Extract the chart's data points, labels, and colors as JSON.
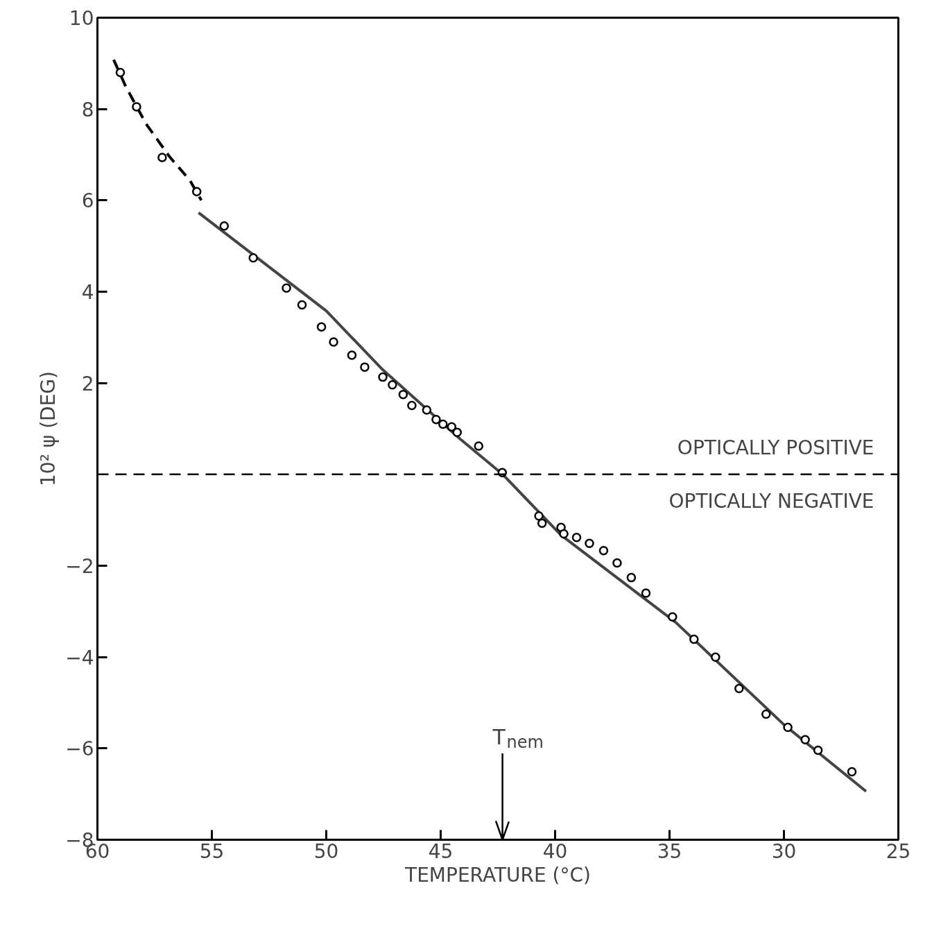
{
  "chart_data": {
    "type": "scatter",
    "xlabel": "TEMPERATURE (°C)",
    "ylabel": "10² ψ (DEG)",
    "xlim": [
      60,
      25
    ],
    "xticks": [
      60,
      55,
      50,
      45,
      40,
      35,
      30,
      25
    ],
    "ylim": [
      -8,
      10
    ],
    "yticks": [
      -8,
      -6,
      -4,
      -2,
      2,
      4,
      6,
      8,
      10
    ],
    "grid": false,
    "series": [
      {
        "marker": "circle",
        "color": "#000000",
        "x": [
          59.0,
          58.29,
          57.17,
          55.66,
          54.46,
          53.19,
          51.74,
          51.06,
          50.21,
          49.68,
          48.88,
          48.32,
          47.53,
          47.11,
          46.64,
          46.26,
          45.61,
          45.2,
          44.9,
          44.52,
          44.28,
          43.34,
          42.31,
          40.71,
          40.57,
          39.74,
          39.62,
          39.06,
          38.5,
          37.88,
          37.29,
          36.67,
          36.03,
          34.87,
          33.93,
          32.99,
          31.96,
          30.78,
          29.83,
          29.07,
          28.51,
          27.03
        ],
        "values": [
          8.8,
          8.05,
          6.94,
          6.19,
          5.44,
          4.74,
          4.08,
          3.71,
          3.23,
          2.9,
          2.61,
          2.35,
          2.13,
          1.96,
          1.75,
          1.51,
          1.41,
          1.2,
          1.1,
          1.04,
          0.92,
          0.62,
          0.04,
          -0.91,
          -1.07,
          -1.16,
          -1.3,
          -1.38,
          -1.51,
          -1.67,
          -1.94,
          -2.26,
          -2.6,
          -3.12,
          -3.61,
          -4.0,
          -4.69,
          -5.25,
          -5.54,
          -5.81,
          -6.04,
          -6.51
        ]
      },
      {
        "type": "line",
        "marker": "none",
        "line_style": "dashed",
        "color": "#000000",
        "x": [
          59.29,
          58.76,
          57.88,
          56.84,
          55.96,
          55.46
        ],
        "values": [
          9.08,
          8.49,
          7.68,
          6.95,
          6.44,
          6.0
        ]
      },
      {
        "type": "line",
        "marker": "none",
        "line_style": "solid",
        "color": "#444444",
        "x": [
          55.58,
          50.0,
          47.53,
          44.16,
          42.31,
          39.74,
          34.73,
          30.0,
          26.41
        ],
        "values": [
          5.73,
          3.58,
          2.29,
          0.78,
          0.01,
          -1.33,
          -3.24,
          -5.48,
          -6.94
        ]
      }
    ],
    "ref_lines": [
      {
        "axis": "y",
        "value": 0,
        "line_style": "dashed",
        "color": "#000000"
      },
      {
        "axis": "x",
        "value": 42.3,
        "label": "T$_{nem}$",
        "line_style": "solid",
        "color": "#000000"
      }
    ],
    "annotations": [
      "OPTICALLY POSITIVE",
      "OPTICALLY NEGATIVE"
    ]
  }
}
